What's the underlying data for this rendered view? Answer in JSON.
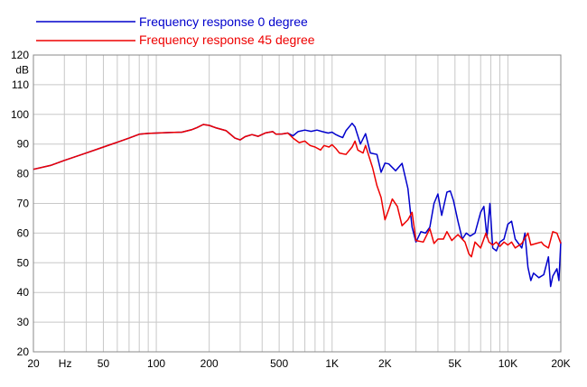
{
  "chart_data": {
    "type": "line",
    "title": "",
    "xlabel": "Hz",
    "ylabel": "dB",
    "x_scale": "log",
    "xlim": [
      20,
      20000
    ],
    "ylim": [
      20,
      120
    ],
    "grid": true,
    "legend_position": "top-left",
    "x_tick_values": [
      20,
      50,
      100,
      200,
      500,
      1000,
      2000,
      5000,
      10000,
      20000
    ],
    "x_tick_labels": [
      "20",
      "50",
      "100",
      "200",
      "500",
      "1K",
      "2K",
      "5K",
      "10K",
      "20K"
    ],
    "y_tick_values": [
      20,
      30,
      40,
      50,
      60,
      70,
      80,
      90,
      100,
      110,
      120
    ],
    "y_tick_labels": [
      "20",
      "30",
      "40",
      "50",
      "60",
      "70",
      "80",
      "90",
      "100",
      "110",
      "120"
    ],
    "series": [
      {
        "name": "Frequency response 0 degree",
        "color": "#0000cc",
        "points": [
          [
            20,
            81.5
          ],
          [
            25,
            82.8
          ],
          [
            30,
            84.5
          ],
          [
            40,
            87.0
          ],
          [
            50,
            89.0
          ],
          [
            60,
            90.6
          ],
          [
            70,
            92.0
          ],
          [
            80,
            93.3
          ],
          [
            90,
            93.6
          ],
          [
            100,
            93.7
          ],
          [
            120,
            93.9
          ],
          [
            140,
            94.0
          ],
          [
            160,
            94.9
          ],
          [
            170,
            95.5
          ],
          [
            185,
            96.6
          ],
          [
            200,
            96.3
          ],
          [
            220,
            95.4
          ],
          [
            250,
            94.5
          ],
          [
            280,
            92.0
          ],
          [
            300,
            91.4
          ],
          [
            320,
            92.5
          ],
          [
            350,
            93.2
          ],
          [
            380,
            92.6
          ],
          [
            420,
            93.8
          ],
          [
            460,
            94.2
          ],
          [
            480,
            93.3
          ],
          [
            520,
            93.4
          ],
          [
            560,
            93.7
          ],
          [
            600,
            92.8
          ],
          [
            640,
            94.2
          ],
          [
            700,
            94.7
          ],
          [
            760,
            94.3
          ],
          [
            820,
            94.7
          ],
          [
            880,
            94.2
          ],
          [
            950,
            93.7
          ],
          [
            1000,
            94.0
          ],
          [
            1050,
            93.2
          ],
          [
            1100,
            92.6
          ],
          [
            1150,
            92.2
          ],
          [
            1200,
            94.5
          ],
          [
            1300,
            97.0
          ],
          [
            1350,
            95.8
          ],
          [
            1450,
            90.0
          ],
          [
            1550,
            93.5
          ],
          [
            1650,
            87.0
          ],
          [
            1800,
            86.5
          ],
          [
            1900,
            80.5
          ],
          [
            2000,
            83.6
          ],
          [
            2100,
            83.3
          ],
          [
            2300,
            81.0
          ],
          [
            2500,
            83.5
          ],
          [
            2700,
            75.0
          ],
          [
            2850,
            62.0
          ],
          [
            3000,
            57.0
          ],
          [
            3200,
            60.5
          ],
          [
            3400,
            60.0
          ],
          [
            3600,
            62.0
          ],
          [
            3800,
            70.0
          ],
          [
            4000,
            73.2
          ],
          [
            4200,
            66.0
          ],
          [
            4500,
            73.8
          ],
          [
            4700,
            74.2
          ],
          [
            4900,
            71.0
          ],
          [
            5200,
            64.0
          ],
          [
            5500,
            58.0
          ],
          [
            5800,
            60.0
          ],
          [
            6100,
            59.0
          ],
          [
            6500,
            60.0
          ],
          [
            7000,
            67.0
          ],
          [
            7300,
            69.0
          ],
          [
            7600,
            58.5
          ],
          [
            7900,
            70.0
          ],
          [
            8200,
            55.0
          ],
          [
            8600,
            54.0
          ],
          [
            9000,
            57.0
          ],
          [
            9500,
            58.0
          ],
          [
            10000,
            63.0
          ],
          [
            10500,
            64.0
          ],
          [
            11000,
            58.0
          ],
          [
            12000,
            55.0
          ],
          [
            12500,
            60.0
          ],
          [
            13000,
            48.5
          ],
          [
            13500,
            44.0
          ],
          [
            14000,
            46.5
          ],
          [
            15000,
            45.0
          ],
          [
            16000,
            46.0
          ],
          [
            17000,
            52.0
          ],
          [
            17500,
            42.0
          ],
          [
            18000,
            45.5
          ],
          [
            19000,
            48.0
          ],
          [
            19500,
            44.0
          ],
          [
            20000,
            57.0
          ]
        ]
      },
      {
        "name": "Frequency response 45 degree",
        "color": "#ee0000",
        "points": [
          [
            20,
            81.5
          ],
          [
            25,
            82.8
          ],
          [
            30,
            84.5
          ],
          [
            40,
            87.0
          ],
          [
            50,
            89.0
          ],
          [
            60,
            90.6
          ],
          [
            70,
            92.0
          ],
          [
            80,
            93.3
          ],
          [
            90,
            93.6
          ],
          [
            100,
            93.7
          ],
          [
            120,
            93.9
          ],
          [
            140,
            94.0
          ],
          [
            160,
            94.9
          ],
          [
            170,
            95.5
          ],
          [
            185,
            96.6
          ],
          [
            200,
            96.3
          ],
          [
            220,
            95.4
          ],
          [
            250,
            94.5
          ],
          [
            280,
            92.0
          ],
          [
            300,
            91.4
          ],
          [
            320,
            92.5
          ],
          [
            350,
            93.2
          ],
          [
            380,
            92.6
          ],
          [
            420,
            93.8
          ],
          [
            460,
            94.2
          ],
          [
            480,
            93.3
          ],
          [
            520,
            93.4
          ],
          [
            560,
            93.7
          ],
          [
            600,
            92.0
          ],
          [
            650,
            90.5
          ],
          [
            700,
            91.0
          ],
          [
            750,
            89.5
          ],
          [
            800,
            89.0
          ],
          [
            860,
            88.0
          ],
          [
            900,
            89.5
          ],
          [
            960,
            89.0
          ],
          [
            1000,
            89.8
          ],
          [
            1050,
            88.5
          ],
          [
            1100,
            87.0
          ],
          [
            1200,
            86.5
          ],
          [
            1300,
            89.0
          ],
          [
            1350,
            91.0
          ],
          [
            1400,
            88.0
          ],
          [
            1500,
            87.0
          ],
          [
            1550,
            89.5
          ],
          [
            1700,
            82.0
          ],
          [
            1800,
            76.0
          ],
          [
            1900,
            72.0
          ],
          [
            2000,
            64.5
          ],
          [
            2100,
            68.0
          ],
          [
            2200,
            71.5
          ],
          [
            2350,
            69.0
          ],
          [
            2500,
            62.5
          ],
          [
            2700,
            64.5
          ],
          [
            2850,
            67.0
          ],
          [
            3000,
            57.5
          ],
          [
            3300,
            57.0
          ],
          [
            3600,
            61.5
          ],
          [
            3800,
            56.5
          ],
          [
            4000,
            58.0
          ],
          [
            4300,
            58.0
          ],
          [
            4500,
            60.5
          ],
          [
            4800,
            57.5
          ],
          [
            5200,
            59.5
          ],
          [
            5700,
            57.0
          ],
          [
            6000,
            53.0
          ],
          [
            6200,
            52.0
          ],
          [
            6500,
            57.0
          ],
          [
            7000,
            55.0
          ],
          [
            7500,
            60.0
          ],
          [
            7800,
            57.0
          ],
          [
            8200,
            56.0
          ],
          [
            8600,
            57.0
          ],
          [
            9000,
            55.5
          ],
          [
            9500,
            57.0
          ],
          [
            10000,
            56.0
          ],
          [
            10500,
            57.0
          ],
          [
            11000,
            55.0
          ],
          [
            12000,
            56.5
          ],
          [
            13000,
            60.0
          ],
          [
            13500,
            56.0
          ],
          [
            14500,
            56.5
          ],
          [
            15500,
            57.0
          ],
          [
            16000,
            56.0
          ],
          [
            17000,
            55.0
          ],
          [
            18000,
            60.5
          ],
          [
            19000,
            60.0
          ],
          [
            20000,
            56.5
          ]
        ]
      }
    ]
  }
}
